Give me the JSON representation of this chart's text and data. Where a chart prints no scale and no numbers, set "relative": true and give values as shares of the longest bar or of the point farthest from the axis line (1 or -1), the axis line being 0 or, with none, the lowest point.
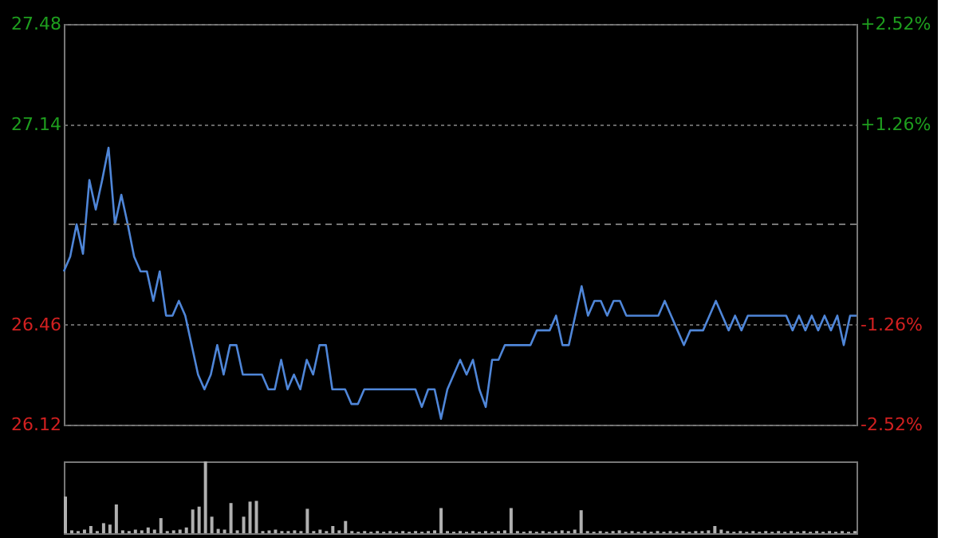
{
  "chart_data": [
    {
      "type": "line",
      "categories": [
        null,
        null,
        null,
        null,
        null,
        null,
        null,
        null,
        null,
        null,
        null,
        null,
        null,
        null,
        null,
        null,
        null,
        null,
        null,
        null,
        null,
        null,
        null,
        null,
        null,
        null,
        null,
        null,
        null,
        null,
        null,
        null,
        null,
        null,
        null,
        null,
        null,
        null,
        null,
        null,
        null,
        null,
        null,
        null,
        null,
        null,
        null,
        null,
        null,
        null,
        null,
        null,
        null,
        null,
        null,
        null,
        null,
        null,
        null,
        null,
        null,
        null,
        null,
        null,
        null,
        null,
        null,
        null,
        null,
        null,
        null,
        null,
        null,
        null,
        null,
        null,
        null,
        null,
        null,
        null,
        null,
        null,
        null,
        null,
        null,
        null,
        null,
        null,
        null,
        null,
        null,
        null,
        null,
        null,
        null,
        null,
        null,
        null,
        null,
        null,
        null,
        null,
        null,
        null,
        null,
        null,
        null,
        null,
        null,
        null,
        null,
        null,
        null,
        null,
        null,
        null,
        null,
        null,
        null,
        null,
        null,
        null,
        null,
        null,
        null
      ],
      "series": [
        {
          "color": "#4f86d8",
          "values": [
            26.64,
            26.69,
            26.8,
            26.7,
            26.95,
            26.85,
            26.95,
            27.06,
            26.8,
            26.9,
            26.8,
            26.69,
            26.64,
            26.64,
            26.54,
            26.64,
            26.49,
            26.49,
            26.54,
            26.49,
            26.39,
            26.29,
            26.24,
            26.29,
            26.39,
            26.29,
            26.39,
            26.39,
            26.29,
            26.29,
            26.29,
            26.29,
            26.24,
            26.24,
            26.34,
            26.24,
            26.29,
            26.24,
            26.34,
            26.29,
            26.39,
            26.39,
            26.24,
            26.24,
            26.24,
            26.19,
            26.19,
            26.24,
            26.24,
            26.24,
            26.24,
            26.24,
            26.24,
            26.24,
            26.24,
            26.24,
            26.18,
            26.24,
            26.24,
            26.14,
            26.24,
            26.29,
            26.34,
            26.29,
            26.34,
            26.24,
            26.18,
            26.34,
            26.34,
            26.39,
            26.39,
            26.39,
            26.39,
            26.39,
            26.44,
            26.44,
            26.44,
            26.49,
            26.39,
            26.39,
            26.49,
            26.59,
            26.49,
            26.54,
            26.54,
            26.49,
            26.54,
            26.54,
            26.49,
            26.49,
            26.49,
            26.49,
            26.49,
            26.49,
            26.54,
            26.49,
            26.44,
            26.39,
            26.44,
            26.44,
            26.44,
            26.49,
            26.54,
            26.49,
            26.44,
            26.49,
            26.44,
            26.49,
            26.49,
            26.49,
            26.49,
            26.49,
            26.49,
            26.49,
            26.44,
            26.49,
            26.44,
            26.49,
            26.44,
            26.49,
            26.44,
            26.49,
            26.39,
            26.49,
            26.49
          ]
        }
      ],
      "ylim": [
        26.12,
        27.48
      ],
      "yticks": [
        26.12,
        26.46,
        27.14,
        27.48
      ],
      "ref_lines": [
        {
          "axis": "y",
          "value": 26.8,
          "color": "#777777",
          "line_style": "dashed"
        }
      ],
      "y2lim": [
        -2.52,
        2.52
      ],
      "y2ticks": [
        {
          "value": -2.52,
          "label": "-2.52%"
        },
        {
          "value": -1.26,
          "label": "-1.26%"
        },
        {
          "value": 1.26,
          "label": "+1.26%"
        },
        {
          "value": 2.52,
          "label": "+2.52%"
        }
      ],
      "tick_labels": "y",
      "grid": "y",
      "line_style": "solid"
    },
    {
      "type": "bar",
      "relative": true,
      "categories": [
        null,
        null,
        null,
        null,
        null,
        null,
        null,
        null,
        null,
        null,
        null,
        null,
        null,
        null,
        null,
        null,
        null,
        null,
        null,
        null,
        null,
        null,
        null,
        null,
        null,
        null,
        null,
        null,
        null,
        null,
        null,
        null,
        null,
        null,
        null,
        null,
        null,
        null,
        null,
        null,
        null,
        null,
        null,
        null,
        null,
        null,
        null,
        null,
        null,
        null,
        null,
        null,
        null,
        null,
        null,
        null,
        null,
        null,
        null,
        null,
        null,
        null,
        null,
        null,
        null,
        null,
        null,
        null,
        null,
        null,
        null,
        null,
        null,
        null,
        null,
        null,
        null,
        null,
        null,
        null,
        null,
        null,
        null,
        null,
        null,
        null,
        null,
        null,
        null,
        null,
        null,
        null,
        null,
        null,
        null,
        null,
        null,
        null,
        null,
        null,
        null,
        null,
        null,
        null,
        null,
        null,
        null,
        null,
        null,
        null,
        null,
        null,
        null,
        null,
        null,
        null,
        null,
        null,
        null,
        null,
        null,
        null,
        null,
        null,
        null
      ],
      "series": [
        {
          "color": "#b0b0b0",
          "values": [
            0.51,
            0.04,
            0.03,
            0.05,
            0.1,
            0.03,
            0.14,
            0.12,
            0.4,
            0.04,
            0.03,
            0.05,
            0.04,
            0.08,
            0.05,
            0.21,
            0.03,
            0.04,
            0.05,
            0.08,
            0.33,
            0.37,
            1.0,
            0.23,
            0.06,
            0.05,
            0.42,
            0.04,
            0.23,
            0.44,
            0.45,
            0.03,
            0.04,
            0.05,
            0.03,
            0.03,
            0.04,
            0.03,
            0.34,
            0.03,
            0.05,
            0.03,
            0.1,
            0.04,
            0.17,
            0.03,
            0.02,
            0.03,
            0.02,
            0.03,
            0.02,
            0.03,
            0.02,
            0.03,
            0.02,
            0.03,
            0.02,
            0.03,
            0.04,
            0.35,
            0.03,
            0.02,
            0.03,
            0.02,
            0.03,
            0.02,
            0.03,
            0.02,
            0.03,
            0.04,
            0.35,
            0.03,
            0.02,
            0.03,
            0.02,
            0.03,
            0.02,
            0.03,
            0.04,
            0.03,
            0.05,
            0.32,
            0.03,
            0.02,
            0.03,
            0.02,
            0.03,
            0.04,
            0.02,
            0.03,
            0.02,
            0.03,
            0.02,
            0.03,
            0.02,
            0.03,
            0.02,
            0.03,
            0.02,
            0.03,
            0.03,
            0.04,
            0.1,
            0.05,
            0.03,
            0.02,
            0.03,
            0.02,
            0.03,
            0.02,
            0.03,
            0.02,
            0.03,
            0.02,
            0.03,
            0.02,
            0.03,
            0.02,
            0.03,
            0.02,
            0.03,
            0.02,
            0.03,
            0.02,
            0.03
          ]
        }
      ],
      "tick_labels": false
    }
  ]
}
